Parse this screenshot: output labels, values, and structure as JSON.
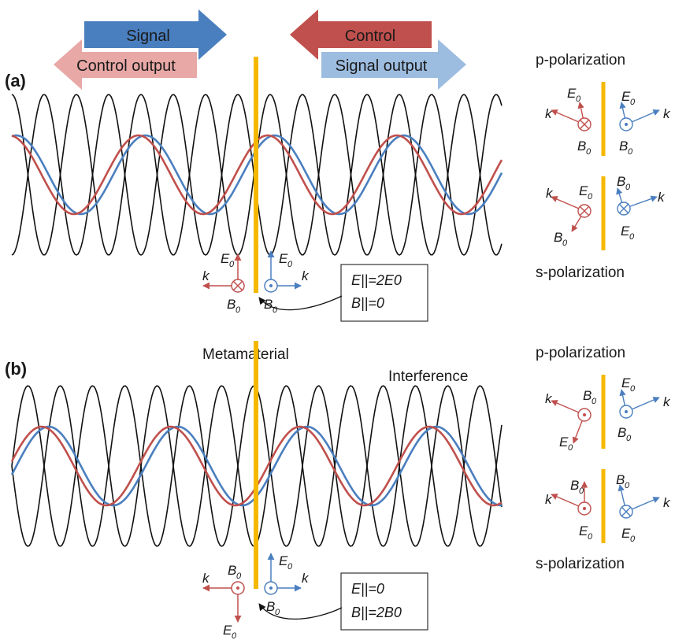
{
  "arrows": {
    "signal": "Signal",
    "control_output": "Control output",
    "control": "Control",
    "signal_output": "Signal output"
  },
  "panel_a": {
    "label": "(a)",
    "box_line1": "E||=2E0",
    "box_line2": "B||=0"
  },
  "panel_b": {
    "label": "(b)",
    "metamaterial": "Metamaterial",
    "interference": "Interference",
    "box_line1": "E||=0",
    "box_line2": "B||=2B0"
  },
  "insets": {
    "p_polarization": "p-polarization",
    "s_polarization": "s-polarization"
  },
  "symbols": {
    "k": "k",
    "E": "E",
    "B": "B",
    "sub0": "0",
    "par": "||"
  },
  "colors": {
    "signal_blue": "#4a7fbf",
    "control_red": "#c0504d",
    "signal_arrow_light": "#9dbde0",
    "control_arrow_light": "#e8a8a6",
    "metamaterial_yellow": "#f5b800",
    "standing_wave": "#111111"
  },
  "icons": [
    "out-of-page-dot-icon",
    "into-page-cross-icon",
    "arrow-icon"
  ]
}
